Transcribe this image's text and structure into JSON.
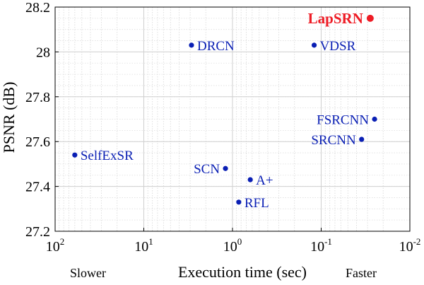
{
  "chart_data": {
    "type": "scatter",
    "xlabel": "Execution time (sec)",
    "ylabel": "PSNR (dB)",
    "x_scale": "log",
    "x_reversed": true,
    "xlim": [
      100,
      0.01
    ],
    "ylim": [
      27.2,
      28.2
    ],
    "grid": true,
    "x_ticks": [
      {
        "base": "10",
        "exp": "2",
        "value": 100
      },
      {
        "base": "10",
        "exp": "1",
        "value": 10
      },
      {
        "base": "10",
        "exp": "0",
        "value": 1
      },
      {
        "base": "10",
        "exp": "-1",
        "value": 0.1
      },
      {
        "base": "10",
        "exp": "-2",
        "value": 0.01
      }
    ],
    "y_ticks": [
      "27.2",
      "27.4",
      "27.6",
      "27.8",
      "28",
      "28.2"
    ],
    "x_direction_labels": {
      "left": "Slower",
      "right": "Faster"
    },
    "colors": {
      "default": "#0a1fb4",
      "highlight": "#ee1c25"
    },
    "points": [
      {
        "name": "LapSRN",
        "x": 0.028,
        "y": 28.15,
        "highlight": true,
        "label_side": "left"
      },
      {
        "name": "DRCN",
        "x": 2.9,
        "y": 28.03,
        "highlight": false,
        "label_side": "right"
      },
      {
        "name": "VDSR",
        "x": 0.12,
        "y": 28.03,
        "highlight": false,
        "label_side": "right"
      },
      {
        "name": "FSRCNN",
        "x": 0.025,
        "y": 27.7,
        "highlight": false,
        "label_side": "left"
      },
      {
        "name": "SRCNN",
        "x": 0.035,
        "y": 27.61,
        "highlight": false,
        "label_side": "left"
      },
      {
        "name": "SelfExSR",
        "x": 60,
        "y": 27.54,
        "highlight": false,
        "label_side": "right"
      },
      {
        "name": "SCN",
        "x": 1.2,
        "y": 27.48,
        "highlight": false,
        "label_side": "left"
      },
      {
        "name": "A+",
        "x": 0.63,
        "y": 27.43,
        "highlight": false,
        "label_side": "right"
      },
      {
        "name": "RFL",
        "x": 0.85,
        "y": 27.33,
        "highlight": false,
        "label_side": "right"
      }
    ]
  }
}
